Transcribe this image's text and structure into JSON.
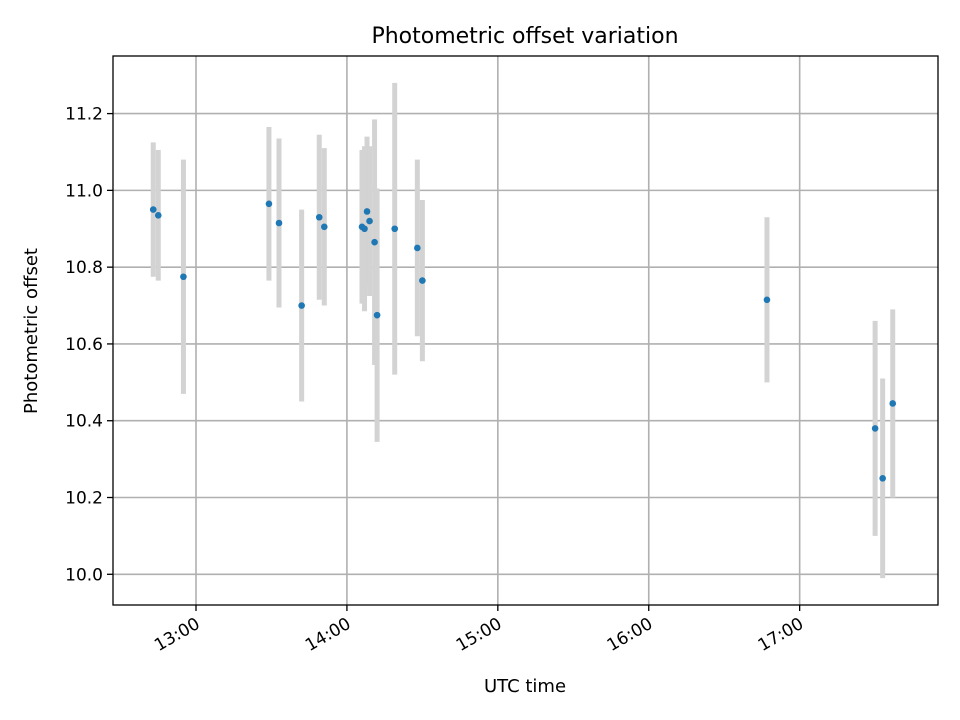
{
  "chart_data": {
    "type": "scatter",
    "title": "Photometric offset variation",
    "xlabel": "UTC time",
    "ylabel": "Photometric offset",
    "x_is_time": true,
    "xlim": [
      "12:27",
      "17:55"
    ],
    "ylim": [
      9.92,
      11.35
    ],
    "xticks": [
      "13:00",
      "14:00",
      "15:00",
      "16:00",
      "17:00"
    ],
    "yticks": [
      10.0,
      10.2,
      10.4,
      10.6,
      10.8,
      11.0,
      11.2
    ],
    "ytick_labels": [
      "10.0",
      "10.2",
      "10.4",
      "10.6",
      "10.8",
      "11.0",
      "11.2"
    ],
    "grid": true,
    "colors": {
      "points": "#1f77b4",
      "errorbars": "#d3d3d3"
    },
    "points": [
      {
        "x": "12:43",
        "y": 10.95,
        "yerr": 0.175
      },
      {
        "x": "12:45",
        "y": 10.935,
        "yerr": 0.17
      },
      {
        "x": "12:55",
        "y": 10.775,
        "yerr": 0.305
      },
      {
        "x": "13:29",
        "y": 10.965,
        "yerr": 0.2
      },
      {
        "x": "13:33",
        "y": 10.915,
        "yerr": 0.22
      },
      {
        "x": "13:42",
        "y": 10.7,
        "yerr": 0.25
      },
      {
        "x": "13:49",
        "y": 10.93,
        "yerr": 0.215
      },
      {
        "x": "13:51",
        "y": 10.905,
        "yerr": 0.205
      },
      {
        "x": "14:06",
        "y": 10.905,
        "yerr": 0.2
      },
      {
        "x": "14:07",
        "y": 10.9,
        "yerr": 0.215
      },
      {
        "x": "14:08",
        "y": 10.945,
        "yerr": 0.195
      },
      {
        "x": "14:09",
        "y": 10.92,
        "yerr": 0.195
      },
      {
        "x": "14:11",
        "y": 10.865,
        "yerr": 0.32
      },
      {
        "x": "14:12",
        "y": 10.675,
        "yerr": 0.33
      },
      {
        "x": "14:19",
        "y": 10.9,
        "yerr": 0.38
      },
      {
        "x": "14:28",
        "y": 10.85,
        "yerr": 0.23
      },
      {
        "x": "14:30",
        "y": 10.765,
        "yerr": 0.21
      },
      {
        "x": "16:47",
        "y": 10.715,
        "yerr": 0.215
      },
      {
        "x": "17:30",
        "y": 10.38,
        "yerr": 0.28
      },
      {
        "x": "17:33",
        "y": 10.25,
        "yerr": 0.26
      },
      {
        "x": "17:37",
        "y": 10.445,
        "yerr": 0.245
      }
    ]
  }
}
